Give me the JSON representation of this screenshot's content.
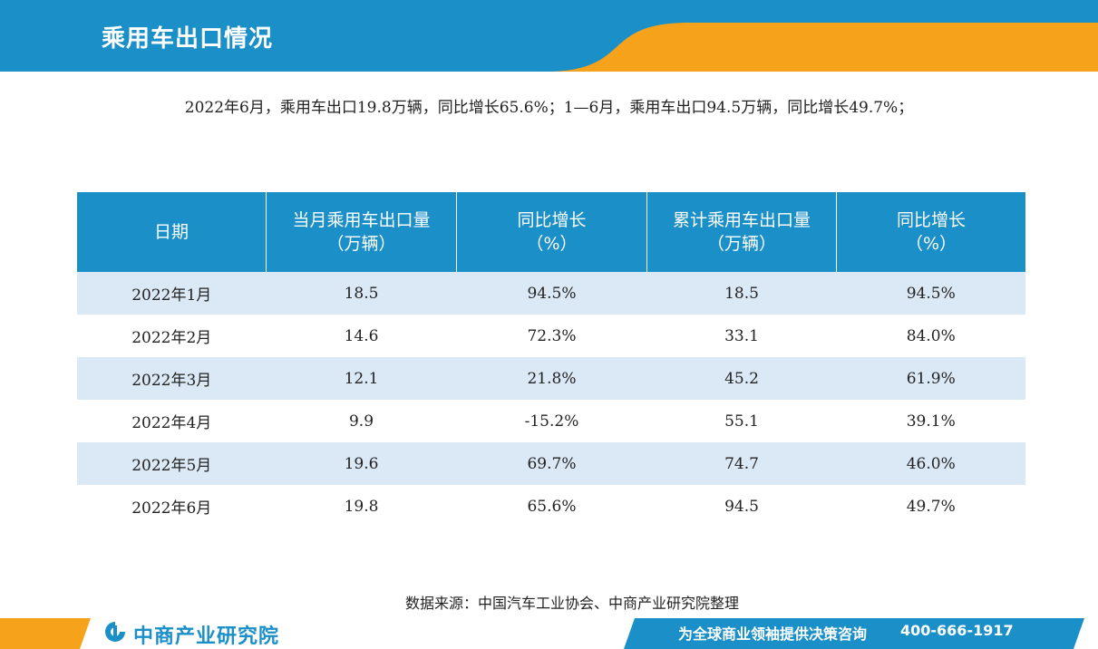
{
  "header": {
    "title": "乘用车出口情况"
  },
  "summary": "2022年6月，乘用车出口19.8万辆，同比增长65.6%；1—6月，乘用车出口94.5万辆，同比增长49.7%；",
  "table": {
    "headers": [
      {
        "line1": "日期",
        "line2": ""
      },
      {
        "line1": "当月乘用车出口量",
        "line2": "（万辆）"
      },
      {
        "line1": "同比增长",
        "line2": "（%）"
      },
      {
        "line1": "累计乘用车出口量",
        "line2": "（万辆）"
      },
      {
        "line1": "同比增长",
        "line2": "（%）"
      }
    ],
    "rows": [
      [
        "2022年1月",
        "18.5",
        "94.5%",
        "18.5",
        "94.5%"
      ],
      [
        "2022年2月",
        "14.6",
        "72.3%",
        "33.1",
        "84.0%"
      ],
      [
        "2022年3月",
        "12.1",
        "21.8%",
        "45.2",
        "61.9%"
      ],
      [
        "2022年4月",
        "9.9",
        "-15.2%",
        "55.1",
        "39.1%"
      ],
      [
        "2022年5月",
        "19.6",
        "69.7%",
        "74.7",
        "46.0%"
      ],
      [
        "2022年6月",
        "19.8",
        "65.6%",
        "94.5",
        "49.7%"
      ]
    ]
  },
  "source": "数据来源：中国汽车工业协会、中商产业研究院整理",
  "footer": {
    "logo": "中商产业研究院",
    "slogan": "为全球商业领袖提供决策咨询",
    "phone": "400-666-1917"
  },
  "colors": {
    "primary": "#1b8fc7",
    "accent": "#f7a21b",
    "row_shade": "#dbe9f7"
  }
}
